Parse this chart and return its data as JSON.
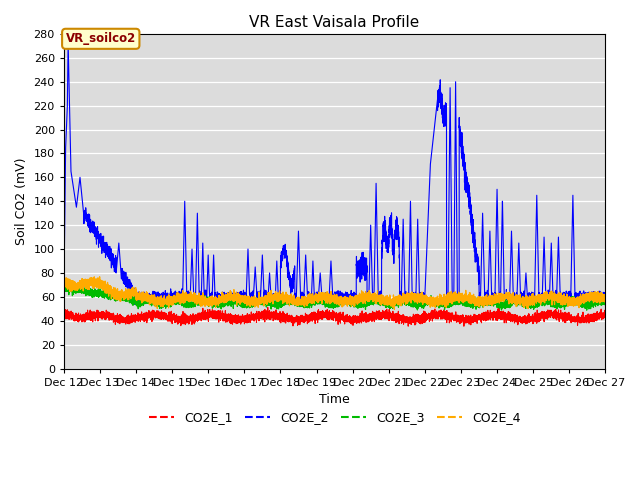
{
  "title": "VR East Vaisala Profile",
  "xlabel": "Time",
  "ylabel": "Soil CO2 (mV)",
  "xlim": [
    12,
    27
  ],
  "ylim": [
    0,
    280
  ],
  "yticks": [
    0,
    20,
    40,
    60,
    80,
    100,
    120,
    140,
    160,
    180,
    200,
    220,
    240,
    260,
    280
  ],
  "xtick_labels": [
    "Dec 12",
    "Dec 13",
    "Dec 14",
    "Dec 15",
    "Dec 16",
    "Dec 17",
    "Dec 18",
    "Dec 19",
    "Dec 20",
    "Dec 21",
    "Dec 22",
    "Dec 23",
    "Dec 24",
    "Dec 25",
    "Dec 26",
    "Dec 27"
  ],
  "annotation_text": "VR_soilco2",
  "colors": {
    "CO2E_1": "#ff0000",
    "CO2E_2": "#0000ff",
    "CO2E_3": "#00bb00",
    "CO2E_4": "#ffaa00"
  },
  "bg_color": "#dcdcdc",
  "grid_color": "#ffffff"
}
